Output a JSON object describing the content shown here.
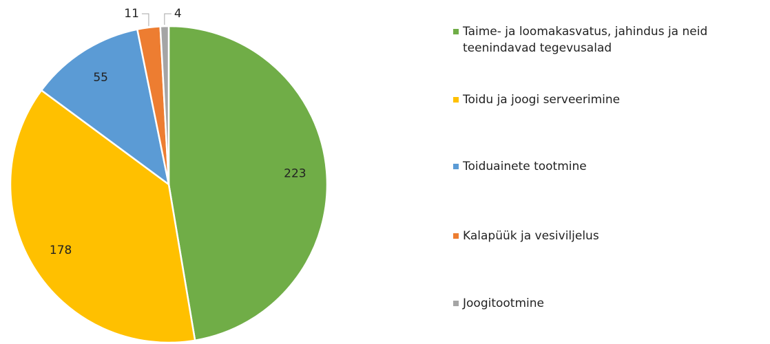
{
  "chart_data": {
    "type": "pie",
    "categories": [
      "Taime- ja loomakasvatus, jahindus ja neid teenindavad tegevusalad",
      "Toidu ja joogi serveerimine",
      "Toiduainete tootmine",
      "Kalapüük ja vesiviljelus",
      "Joogitootmine"
    ],
    "values": [
      223,
      178,
      55,
      11,
      4
    ],
    "colors": [
      "#70ad47",
      "#ffc000",
      "#5b9bd5",
      "#ed7d31",
      "#a5a5a5"
    ],
    "legend": "right"
  }
}
